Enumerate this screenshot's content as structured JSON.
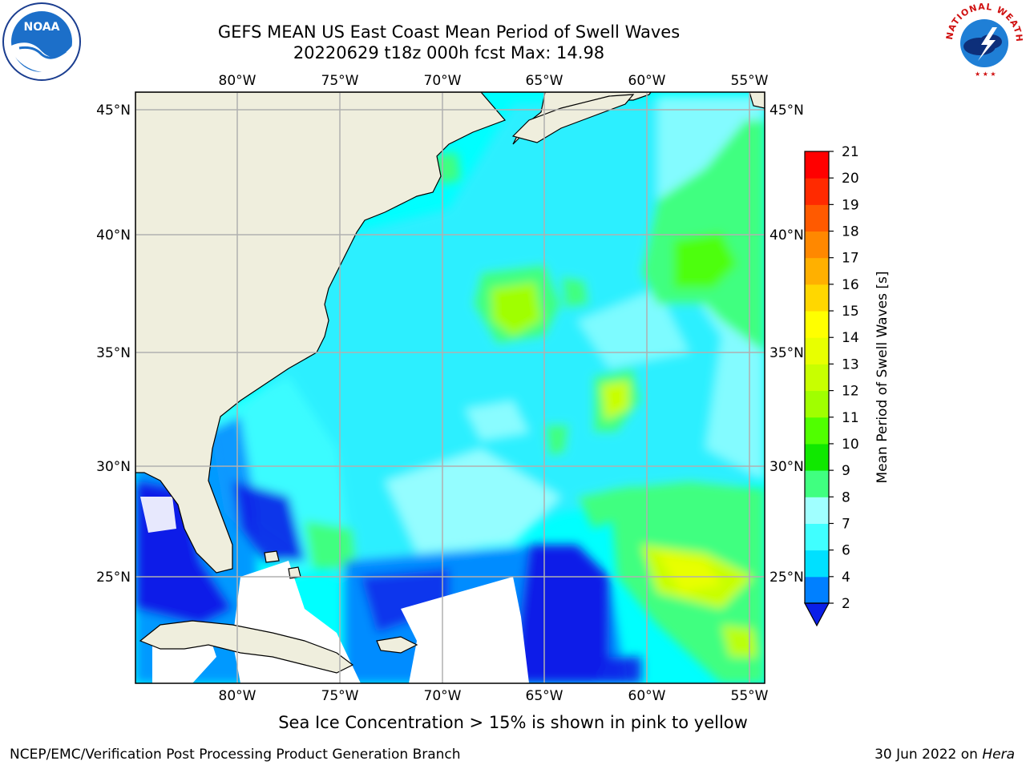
{
  "header": {
    "title_line1": "GEFS MEAN US East Coast Mean Period of Swell Waves",
    "title_line2": "20220629 t18z 000h fcst   Max: 14.98"
  },
  "map": {
    "lon_labels": [
      "80°W",
      "75°W",
      "70°W",
      "65°W",
      "60°W",
      "55°W"
    ],
    "lat_labels": [
      "45°N",
      "40°N",
      "35°N",
      "30°N",
      "25°N"
    ],
    "land_color": "#efeedd",
    "ocean_base_color": "#00ffff",
    "gridline_color": "#b0b0b0"
  },
  "colorbar": {
    "label": "Mean Period of Swell Waves [s]",
    "ticks": [
      "2",
      "4",
      "6",
      "7",
      "8",
      "9",
      "10",
      "11",
      "12",
      "13",
      "14",
      "15",
      "16",
      "17",
      "18",
      "19",
      "20",
      "21"
    ],
    "colors": [
      "#0a1fe8",
      "#0080ff",
      "#00e0ff",
      "#40ffff",
      "#a0ffff",
      "#40ff80",
      "#10e800",
      "#50ff00",
      "#a0ff00",
      "#c8ff00",
      "#e8ff00",
      "#ffff00",
      "#ffd700",
      "#ffb000",
      "#ff8800",
      "#ff5a00",
      "#ff2a00",
      "#ff0000"
    ]
  },
  "note": "Sea Ice Concentration > 15% is shown in pink to yellow",
  "footer": {
    "left": "NCEP/EMC/Verification Post Processing Product Generation Branch",
    "right_prefix": "30 Jun 2022 on ",
    "right_host": "Hera"
  },
  "logos": {
    "noaa_text": "NOAA",
    "nws_text": "NATIONAL WEATHER SERVICE"
  }
}
